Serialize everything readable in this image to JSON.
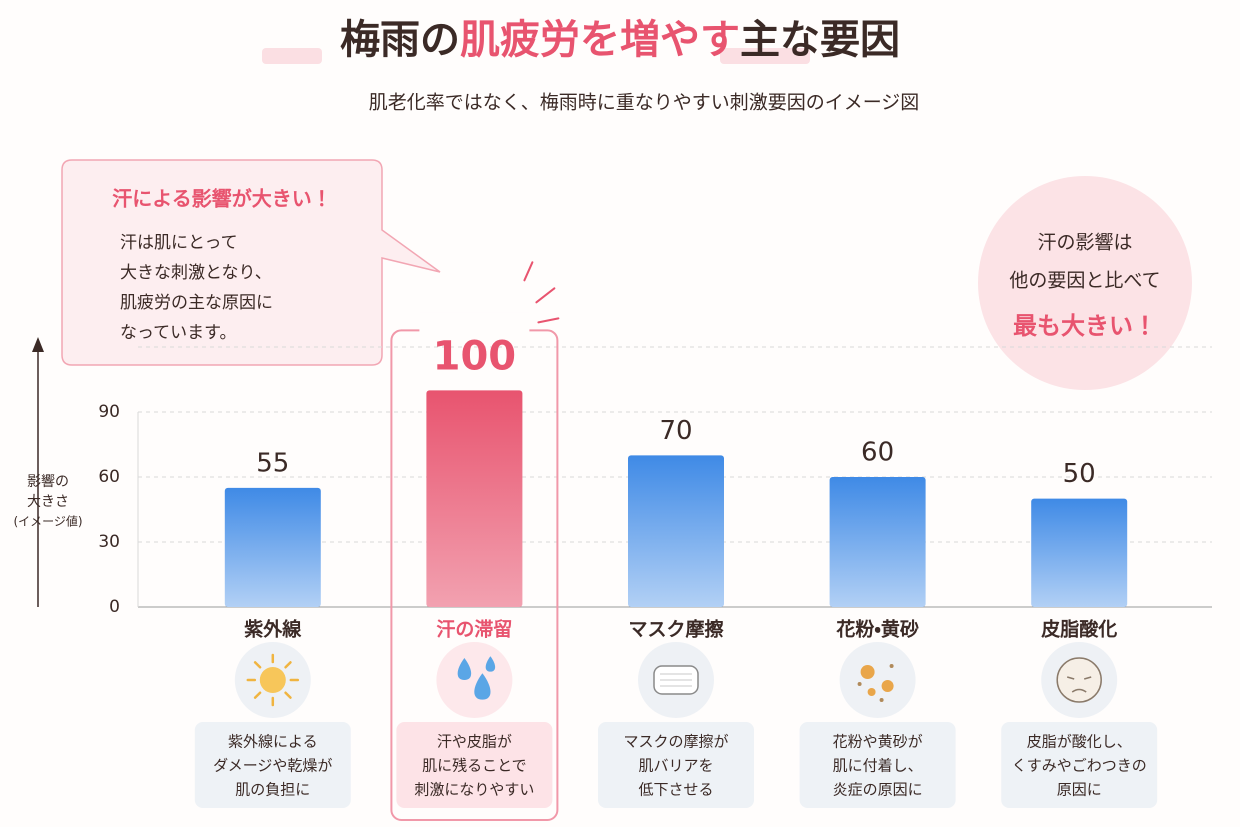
{
  "title": [
    "梅雨の",
    "肌疲労を増やす",
    "主な要因"
  ],
  "subtitle": "肌老化率ではなく、梅雨時に重なりやすい刺激要因のイメージ図",
  "callout": {
    "heading": "汗による影響が大きい！",
    "lines": [
      "汗は肌にとって",
      "大きな刺激となり、",
      "肌疲労の主な原因に",
      "なっています。"
    ]
  },
  "badge": {
    "lines": [
      "汗の影響は",
      "他の要因と比べて"
    ],
    "emphasis": "最も大きい！"
  },
  "chart_data": {
    "type": "bar",
    "ylabel": [
      "影響の",
      "大きさ",
      "(イメージ値)"
    ],
    "categories": [
      "紫外線",
      "汗の滞留",
      "マスク摩擦",
      "花粉・黄砂",
      "皮脂酸化"
    ],
    "values": [
      55,
      100,
      70,
      60,
      50
    ],
    "colors": [
      "#3f8ae6",
      "#e8546f",
      "#3f8ae6",
      "#3f8ae6",
      "#3f8ae6"
    ],
    "highlight_index": 1,
    "ylim": [
      0,
      120
    ],
    "yticks": [
      0,
      30,
      60,
      90
    ],
    "grid": true,
    "descriptions": [
      [
        "紫外線による",
        "ダメージや乾燥が",
        "肌の負担に"
      ],
      [
        "汗や皮脂が",
        "肌に残ることで",
        "刺激になりやすい"
      ],
      [
        "マスクの摩擦が",
        "肌バリアを",
        "低下させる"
      ],
      [
        "花粉や黄砂が",
        "肌に付着し、",
        "炎症の原因に"
      ],
      [
        "皮脂が酸化し、",
        "くすみやごわつきの",
        "原因に"
      ]
    ]
  }
}
